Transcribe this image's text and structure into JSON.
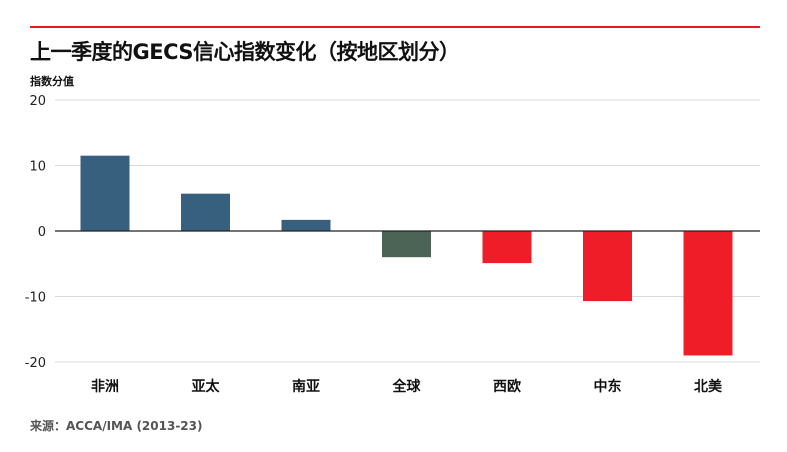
{
  "chart_data": {
    "type": "bar",
    "title": "上一季度的GECS信心指数变化（按地区划分）",
    "ylabel": "指数分值",
    "source": "来源：ACCA/IMA (2013-23)",
    "ylim": [
      -20,
      20
    ],
    "yticks": [
      20,
      10,
      0,
      -10,
      -20
    ],
    "categories": [
      "非洲",
      "亚太",
      "南亚",
      "全球",
      "西欧",
      "中东",
      "北美"
    ],
    "values": [
      11.5,
      5.7,
      1.7,
      -4.0,
      -4.9,
      -10.7,
      -19.0
    ],
    "colors": [
      "#37607f",
      "#37607f",
      "#37607f",
      "#4b6456",
      "#ee1d27",
      "#ee1d27",
      "#ee1d27"
    ],
    "grid": true,
    "legend": "none"
  }
}
